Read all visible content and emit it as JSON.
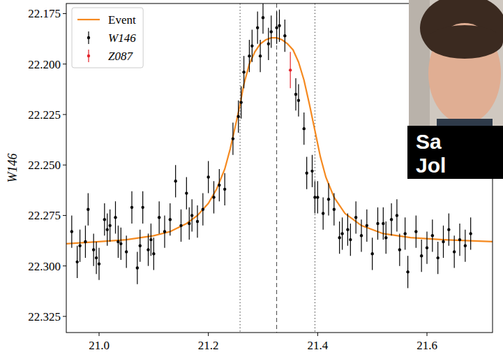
{
  "chart_data": {
    "type": "scatter",
    "y_label": "W146",
    "annotations": [
      "Sa",
      "Jol"
    ],
    "xlim": [
      20.94,
      21.72
    ],
    "ylim": [
      22.333,
      22.17
    ],
    "xticks": [
      {
        "value": 21.0,
        "label": "21.0"
      },
      21.2,
      21.4,
      21.6
    ],
    "yticks": [
      22.175,
      {
        "value": 22.2,
        "label": "22.200"
      },
      22.225,
      {
        "value": 22.25,
        "label": "22.250"
      },
      22.275,
      {
        "value": 22.3,
        "label": "22.300"
      },
      22.325
    ],
    "legend": "upper left",
    "grid": false,
    "vertical_lines": [
      {
        "value": 21.258,
        "line_style": "dotted"
      },
      {
        "value": 21.325,
        "line_style": "dashed"
      },
      {
        "value": 21.395,
        "line_style": "dotted"
      }
    ],
    "series": [
      {
        "name": "Event",
        "type": "line",
        "color": "#f5891f",
        "x": [
          20.94,
          21.0,
          21.05,
          21.1,
          21.13,
          21.16,
          21.18,
          21.2,
          21.215,
          21.23,
          21.24,
          21.25,
          21.258,
          21.265,
          21.275,
          21.285,
          21.295,
          21.305,
          21.315,
          21.325,
          21.335,
          21.345,
          21.355,
          21.365,
          21.375,
          21.385,
          21.395,
          21.405,
          21.415,
          21.43,
          21.45,
          21.48,
          21.52,
          21.57,
          21.63,
          21.72
        ],
        "values": [
          22.289,
          22.288,
          22.287,
          22.285,
          22.283,
          22.279,
          22.275,
          22.269,
          22.262,
          22.252,
          22.242,
          22.23,
          22.22,
          22.21,
          22.2,
          22.194,
          22.19,
          22.188,
          22.187,
          22.187,
          22.188,
          22.19,
          22.193,
          22.199,
          22.208,
          22.22,
          22.233,
          22.246,
          22.256,
          22.266,
          22.274,
          22.28,
          22.284,
          22.286,
          22.287,
          22.288
        ]
      },
      {
        "name": "W146",
        "type": "scatter",
        "color": "#000000",
        "marker": "point",
        "x": [
          20.95,
          20.96,
          20.965,
          20.975,
          20.98,
          20.99,
          20.995,
          21.0,
          21.01,
          21.015,
          21.02,
          21.03,
          21.035,
          21.04,
          21.05,
          21.06,
          21.07,
          21.075,
          21.08,
          21.09,
          21.095,
          21.1,
          21.11,
          21.12,
          21.13,
          21.14,
          21.15,
          21.16,
          21.165,
          21.17,
          21.18,
          21.19,
          21.2,
          21.21,
          21.22,
          21.23,
          21.245,
          21.255,
          21.26,
          21.265,
          21.275,
          21.28,
          21.29,
          21.295,
          21.3,
          21.31,
          21.315,
          21.325,
          21.33,
          21.34,
          21.36,
          21.365,
          21.375,
          21.38,
          21.39,
          21.395,
          21.4,
          21.41,
          21.42,
          21.43,
          21.44,
          21.445,
          21.455,
          21.46,
          21.47,
          21.48,
          21.49,
          21.5,
          21.51,
          21.52,
          21.525,
          21.535,
          21.545,
          21.55,
          21.56,
          21.565,
          21.58,
          21.59,
          21.6,
          21.61,
          21.62,
          21.63,
          21.64,
          21.65,
          21.66,
          21.67,
          21.68
        ],
        "values": [
          22.283,
          22.298,
          22.29,
          22.288,
          22.272,
          22.292,
          22.296,
          22.299,
          22.277,
          22.282,
          22.28,
          22.276,
          22.288,
          22.289,
          22.293,
          22.271,
          22.301,
          22.29,
          22.271,
          22.292,
          22.287,
          22.294,
          22.276,
          22.283,
          22.277,
          22.258,
          22.28,
          22.264,
          22.279,
          22.275,
          22.278,
          22.272,
          22.256,
          22.266,
          22.26,
          22.262,
          22.237,
          22.226,
          22.219,
          22.204,
          22.196,
          22.191,
          22.182,
          22.196,
          22.177,
          22.19,
          22.184,
          22.182,
          22.181,
          22.186,
          22.215,
          22.218,
          22.232,
          22.254,
          22.253,
          22.266,
          22.266,
          22.274,
          22.267,
          22.272,
          22.286,
          22.284,
          22.282,
          22.287,
          22.276,
          22.285,
          22.28,
          22.294,
          22.279,
          22.279,
          22.286,
          22.277,
          22.275,
          22.292,
          22.284,
          22.303,
          22.283,
          22.295,
          22.291,
          22.285,
          22.296,
          22.288,
          22.282,
          22.293,
          22.287,
          22.29,
          22.284
        ],
        "error": [
          0.008,
          0.008,
          0.008,
          0.008,
          0.008,
          0.008,
          0.008,
          0.008,
          0.008,
          0.008,
          0.008,
          0.008,
          0.008,
          0.008,
          0.008,
          0.008,
          0.008,
          0.008,
          0.008,
          0.008,
          0.008,
          0.008,
          0.008,
          0.008,
          0.008,
          0.008,
          0.008,
          0.008,
          0.008,
          0.008,
          0.008,
          0.008,
          0.008,
          0.008,
          0.008,
          0.008,
          0.008,
          0.008,
          0.008,
          0.008,
          0.008,
          0.008,
          0.008,
          0.008,
          0.008,
          0.008,
          0.008,
          0.008,
          0.008,
          0.008,
          0.008,
          0.008,
          0.008,
          0.008,
          0.008,
          0.008,
          0.008,
          0.008,
          0.008,
          0.008,
          0.008,
          0.008,
          0.008,
          0.008,
          0.008,
          0.008,
          0.008,
          0.008,
          0.008,
          0.008,
          0.008,
          0.008,
          0.008,
          0.008,
          0.008,
          0.008,
          0.008,
          0.008,
          0.008,
          0.008,
          0.008,
          0.008,
          0.008,
          0.008,
          0.008,
          0.008,
          0.008
        ]
      },
      {
        "name": "Z087",
        "type": "scatter",
        "color": "#e3242b",
        "marker": "point",
        "x": [
          21.35
        ],
        "values": [
          22.203
        ],
        "error": [
          0.009
        ]
      }
    ]
  }
}
